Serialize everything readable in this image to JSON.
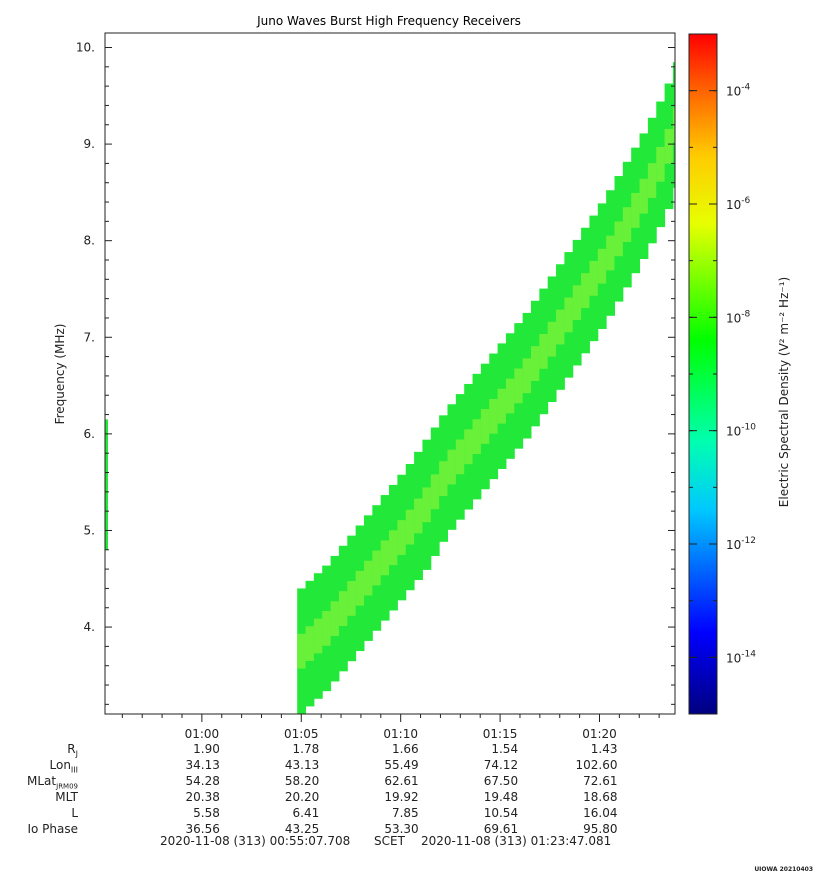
{
  "chart_data": {
    "type": "heatmap",
    "title": "Juno Waves Burst High Frequency Receivers",
    "ylabel": "Frequency (MHz)",
    "ylim": [
      3.1,
      10.15
    ],
    "y_ticks": [
      "4.",
      "5.",
      "6.",
      "7.",
      "8.",
      "9.",
      "10."
    ],
    "x_ticks": [
      "01:00",
      "01:05",
      "01:10",
      "01:15",
      "01:20"
    ],
    "x_range_minutes_from_0055": [
      0,
      28.67
    ],
    "colorbar": {
      "label": "Electric Spectral Density (V² m⁻² Hz⁻¹)",
      "scale": "log",
      "range": [
        "1e-15",
        "1e-3"
      ],
      "ticks": [
        "10^-4",
        "10^-6",
        "10^-8",
        "10^-10",
        "10^-12",
        "10^-14"
      ]
    },
    "emission_envelope": [
      {
        "t": "01:04:40",
        "f_low": 3.1,
        "f_high": 4.4
      },
      {
        "t": "01:06:00",
        "f_low": 3.35,
        "f_high": 4.65
      },
      {
        "t": "01:07:00",
        "f_low": 3.6,
        "f_high": 4.9
      },
      {
        "t": "01:08:00",
        "f_low": 3.85,
        "f_high": 5.15
      },
      {
        "t": "01:09:00",
        "f_low": 4.1,
        "f_high": 5.4
      },
      {
        "t": "01:10:00",
        "f_low": 4.35,
        "f_high": 5.65
      },
      {
        "t": "01:11:00",
        "f_low": 4.6,
        "f_high": 5.95
      },
      {
        "t": "01:12:00",
        "f_low": 4.95,
        "f_high": 6.25
      },
      {
        "t": "01:13:00",
        "f_low": 5.2,
        "f_high": 6.5
      },
      {
        "t": "01:14:00",
        "f_low": 5.45,
        "f_high": 6.75
      },
      {
        "t": "01:15:00",
        "f_low": 5.7,
        "f_high": 7.0
      },
      {
        "t": "01:16:00",
        "f_low": 5.95,
        "f_high": 7.25
      },
      {
        "t": "01:17:00",
        "f_low": 6.25,
        "f_high": 7.55
      },
      {
        "t": "01:18:00",
        "f_low": 6.55,
        "f_high": 7.85
      },
      {
        "t": "01:19:00",
        "f_low": 6.85,
        "f_high": 8.15
      },
      {
        "t": "01:20:00",
        "f_low": 7.15,
        "f_high": 8.45
      },
      {
        "t": "01:21:00",
        "f_low": 7.5,
        "f_high": 8.8
      },
      {
        "t": "01:22:00",
        "f_low": 7.85,
        "f_high": 9.15
      },
      {
        "t": "01:23:00",
        "f_low": 8.25,
        "f_high": 9.55
      },
      {
        "t": "01:23:40",
        "f_low": 8.6,
        "f_high": 9.9
      }
    ]
  },
  "ephemeris": {
    "rows": [
      {
        "label": "RJ",
        "values": [
          "1.90",
          "1.78",
          "1.66",
          "1.54",
          "1.43"
        ]
      },
      {
        "label": "LonIII",
        "values": [
          "34.13",
          "43.13",
          "55.49",
          "74.12",
          "102.60"
        ]
      },
      {
        "label": "MLatJRM09",
        "values": [
          "54.28",
          "58.20",
          "62.61",
          "67.50",
          "72.61"
        ]
      },
      {
        "label": "MLT",
        "values": [
          "20.38",
          "20.20",
          "19.92",
          "19.48",
          "18.68"
        ]
      },
      {
        "label": "L",
        "values": [
          "5.58",
          "6.41",
          "7.85",
          "10.54",
          "16.04"
        ]
      },
      {
        "label": "Io Phase",
        "values": [
          "36.56",
          "43.25",
          "53.30",
          "69.61",
          "95.80"
        ]
      }
    ]
  },
  "footer": {
    "start": "2020-11-08 (313) 00:55:07.708",
    "mid": "SCET",
    "end": "2020-11-08 (313) 01:23:47.081"
  },
  "version_tag": "UIOWA 20210403",
  "colors": {
    "background_green": "#22e83a",
    "bright_green": "#7cf23a",
    "cyan_green": "#22f0a0"
  }
}
